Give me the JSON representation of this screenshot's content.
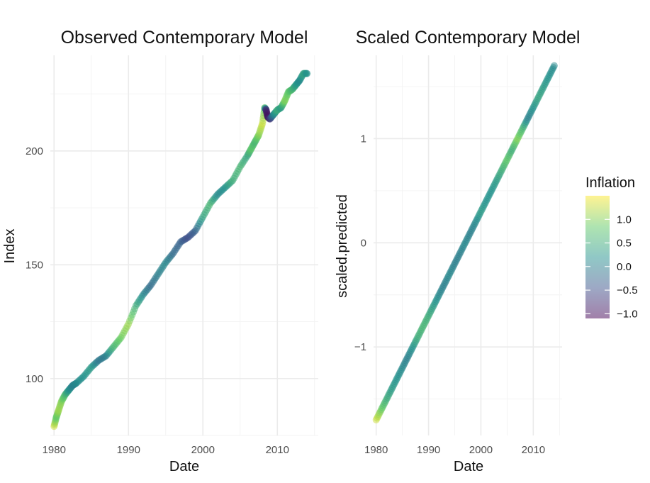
{
  "chart_data": [
    {
      "type": "scatter",
      "title": "Observed Contemporary Model",
      "xlabel": "Date",
      "ylabel": "Index",
      "xlim": [
        1979.5,
        2015.5
      ],
      "ylim": [
        75,
        242
      ],
      "x_ticks": [
        1980,
        1990,
        2000,
        2010
      ],
      "x_tick_labels": [
        "1980",
        "1990",
        "2000",
        "2010"
      ],
      "y_ticks": [
        100,
        150,
        200
      ],
      "y_tick_labels": [
        "100",
        "150",
        "200"
      ],
      "grid": true,
      "series": [
        {
          "x": [
            1980.0,
            1980.3,
            1980.6,
            1981.0,
            1981.5,
            1982.0,
            1982.5,
            1983.0,
            1984.0,
            1985.0,
            1986.0,
            1987.0,
            1988.0,
            1989.0,
            1990.0,
            1991.0,
            1992.0,
            1993.0,
            1994.0,
            1995.0,
            1996.0,
            1997.0,
            1998.0,
            1999.0,
            2000.0,
            2001.0,
            2002.0,
            2003.0,
            2004.0,
            2005.0,
            2006.0,
            2006.5,
            2007.0,
            2007.5,
            2008.0,
            2008.3,
            2008.5,
            2008.7,
            2009.0,
            2009.5,
            2010.0,
            2010.5,
            2011.0,
            2011.5,
            2012.0,
            2012.5,
            2013.0,
            2013.5,
            2014.0
          ],
          "y": [
            79,
            83,
            86,
            90,
            93,
            95,
            97,
            98,
            101,
            105,
            108,
            110,
            114,
            118,
            124,
            132,
            137,
            141,
            146,
            151,
            155,
            160,
            162,
            165,
            171,
            177,
            181,
            184,
            187,
            193,
            198,
            201,
            204,
            207,
            212,
            219,
            218,
            215,
            214,
            216,
            218,
            219,
            222,
            226,
            227,
            229,
            231,
            234,
            234
          ],
          "inflation": [
            1.3,
            0.8,
            1.1,
            1.0,
            0.6,
            0.2,
            0.0,
            0.1,
            0.2,
            0.3,
            -0.1,
            0.0,
            0.6,
            0.9,
            1.1,
            0.5,
            0.1,
            -0.2,
            0.0,
            0.1,
            -0.2,
            -0.3,
            -0.5,
            -0.3,
            0.4,
            0.6,
            0.1,
            0.2,
            0.5,
            0.6,
            0.4,
            0.8,
            0.6,
            1.0,
            1.3,
            0.8,
            -0.8,
            -1.0,
            -0.7,
            0.1,
            0.5,
            0.3,
            1.0,
            0.8,
            0.6,
            0.3,
            0.1,
            0.4,
            0.2
          ]
        }
      ]
    },
    {
      "type": "scatter",
      "title": "Scaled Contemporary Model",
      "xlabel": "Date",
      "ylabel": "scaled.predicted",
      "xlim": [
        1979.5,
        2015.5
      ],
      "ylim": [
        -1.85,
        1.8
      ],
      "x_ticks": [
        1980,
        1990,
        2000,
        2010
      ],
      "x_tick_labels": [
        "1980",
        "1990",
        "2000",
        "2010"
      ],
      "y_ticks": [
        -1,
        0,
        1
      ],
      "y_tick_labels": [
        "−1",
        "0",
        "1"
      ],
      "grid": true,
      "series": [
        {
          "x": [
            1980.0,
            1981.0,
            1982.0,
            1983.0,
            1984.0,
            1985.0,
            1986.0,
            1987.0,
            1988.0,
            1989.0,
            1990.0,
            1991.0,
            1992.0,
            1993.0,
            1994.0,
            1995.0,
            1996.0,
            1997.0,
            1998.0,
            1999.0,
            2000.0,
            2001.0,
            2002.0,
            2003.0,
            2004.0,
            2005.0,
            2006.0,
            2007.0,
            2008.0,
            2009.0,
            2010.0,
            2011.0,
            2012.0,
            2013.0,
            2014.0
          ],
          "y": [
            -1.7,
            -1.6,
            -1.5,
            -1.4,
            -1.3,
            -1.2,
            -1.1,
            -1.0,
            -0.9,
            -0.8,
            -0.7,
            -0.6,
            -0.5,
            -0.4,
            -0.3,
            -0.2,
            -0.1,
            0.0,
            0.1,
            0.2,
            0.3,
            0.4,
            0.5,
            0.6,
            0.7,
            0.8,
            0.9,
            1.0,
            1.1,
            1.2,
            1.3,
            1.4,
            1.5,
            1.6,
            1.7
          ],
          "inflation": [
            1.3,
            0.9,
            0.5,
            0.3,
            0.2,
            0.1,
            0.0,
            0.2,
            0.5,
            0.6,
            0.5,
            0.3,
            0.1,
            0.0,
            0.1,
            0.0,
            0.0,
            0.1,
            0.0,
            0.1,
            0.3,
            0.2,
            0.2,
            0.3,
            0.5,
            0.8,
            0.5,
            1.0,
            0.6,
            0.0,
            0.2,
            0.4,
            0.3,
            0.2,
            0.1
          ]
        }
      ]
    }
  ],
  "legend": {
    "title": "Inflation",
    "position": "right",
    "range": [
      -1.1,
      1.5
    ],
    "ticks": [
      1.0,
      0.5,
      0.0,
      -0.5,
      -1.0
    ],
    "tick_labels": [
      "1.0",
      "0.5",
      "0.0",
      "−0.5",
      "−1.0"
    ],
    "colors": [
      "#440154",
      "#3b528b",
      "#21918c",
      "#5ec962",
      "#fde725"
    ],
    "opacity": 0.5
  }
}
